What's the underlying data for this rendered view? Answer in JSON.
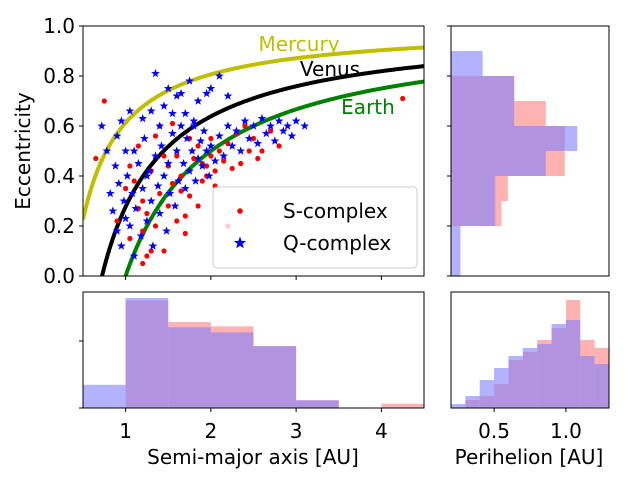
{
  "chart_data": [
    {
      "panel": "main-scatter",
      "type": "scatter",
      "xlabel": "",
      "ylabel": "Eccentricity",
      "xlim": [
        0.5,
        4.5
      ],
      "ylim": [
        0.0,
        1.0
      ],
      "yticks": [
        0.0,
        0.2,
        0.4,
        0.6,
        0.8,
        1.0
      ],
      "ytick_labels": [
        "0.0",
        "0.2",
        "0.4",
        "0.6",
        "0.8",
        "1.0"
      ],
      "xticks": [
        1,
        2,
        3,
        4
      ],
      "legend": {
        "placement": "lower-right",
        "entries": [
          "S-complex",
          "Q-complex"
        ]
      },
      "curves": [
        {
          "name": "Mercury",
          "label": "Mercury",
          "perihelion": 0.387,
          "color": "#bfbf00"
        },
        {
          "name": "Venus",
          "label": "Venus",
          "perihelion": 0.723,
          "color": "#000000"
        },
        {
          "name": "Earth",
          "label": "Earth",
          "perihelion": 1.0,
          "color": "#008000"
        }
      ],
      "series": [
        {
          "name": "S-complex",
          "color": "#ff0000",
          "marker": "dot",
          "points": [
            [
              0.65,
              0.47
            ],
            [
              0.75,
              0.7
            ],
            [
              0.9,
              0.22
            ],
            [
              1.0,
              0.35
            ],
            [
              1.05,
              0.15
            ],
            [
              1.1,
              0.38
            ],
            [
              1.2,
              0.3
            ],
            [
              1.25,
              0.25
            ],
            [
              1.3,
              0.42
            ],
            [
              1.35,
              0.2
            ],
            [
              1.4,
              0.33
            ],
            [
              1.45,
              0.1
            ],
            [
              1.5,
              0.28
            ],
            [
              1.55,
              0.37
            ],
            [
              1.6,
              0.48
            ],
            [
              1.65,
              0.4
            ],
            [
              1.7,
              0.24
            ],
            [
              1.75,
              0.32
            ],
            [
              1.8,
              0.47
            ],
            [
              1.85,
              0.52
            ],
            [
              1.9,
              0.38
            ],
            [
              1.95,
              0.44
            ],
            [
              2.0,
              0.55
            ],
            [
              2.05,
              0.42
            ],
            [
              2.1,
              0.5
            ],
            [
              2.15,
              0.46
            ],
            [
              2.2,
              0.53
            ],
            [
              2.3,
              0.57
            ],
            [
              2.4,
              0.6
            ],
            [
              2.5,
              0.55
            ],
            [
              2.6,
              0.5
            ],
            [
              1.2,
              0.05
            ],
            [
              1.3,
              0.1
            ],
            [
              1.15,
              0.52
            ],
            [
              1.4,
              0.6
            ],
            [
              1.55,
              0.61
            ],
            [
              1.7,
              0.17
            ],
            [
              2.2,
              0.2
            ],
            [
              1.6,
              0.22
            ],
            [
              1.9,
              0.45
            ],
            [
              2.0,
              0.48
            ],
            [
              2.35,
              0.45
            ],
            [
              1.75,
              0.55
            ],
            [
              2.7,
              0.58
            ],
            [
              2.8,
              0.52
            ],
            [
              4.25,
              0.71
            ],
            [
              1.25,
              0.08
            ],
            [
              1.05,
              0.44
            ],
            [
              1.45,
              0.48
            ],
            [
              1.65,
              0.34
            ],
            [
              1.85,
              0.28
            ],
            [
              2.05,
              0.36
            ],
            [
              2.45,
              0.5
            ],
            [
              1.35,
              0.56
            ],
            [
              1.15,
              0.27
            ],
            [
              2.55,
              0.47
            ],
            [
              2.25,
              0.43
            ],
            [
              1.95,
              0.4
            ],
            [
              1.5,
              0.44
            ],
            [
              1.2,
              0.18
            ]
          ]
        },
        {
          "name": "Q-complex",
          "color": "#0000ff",
          "marker": "star",
          "points": [
            [
              0.72,
              0.6
            ],
            [
              0.78,
              0.5
            ],
            [
              0.82,
              0.33
            ],
            [
              0.85,
              0.26
            ],
            [
              0.88,
              0.44
            ],
            [
              0.9,
              0.18
            ],
            [
              0.92,
              0.37
            ],
            [
              0.95,
              0.12
            ],
            [
              0.98,
              0.3
            ],
            [
              1.0,
              0.23
            ],
            [
              1.02,
              0.4
            ],
            [
              1.05,
              0.2
            ],
            [
              1.08,
              0.33
            ],
            [
              1.1,
              0.08
            ],
            [
              1.12,
              0.27
            ],
            [
              1.15,
              0.45
            ],
            [
              1.18,
              0.16
            ],
            [
              1.2,
              0.35
            ],
            [
              1.22,
              0.55
            ],
            [
              1.25,
              0.22
            ],
            [
              1.28,
              0.42
            ],
            [
              1.3,
              0.3
            ],
            [
              1.32,
              0.12
            ],
            [
              1.35,
              0.48
            ],
            [
              1.38,
              0.36
            ],
            [
              1.4,
              0.25
            ],
            [
              1.42,
              0.52
            ],
            [
              1.45,
              0.4
            ],
            [
              1.48,
              0.18
            ],
            [
              1.5,
              0.45
            ],
            [
              1.52,
              0.33
            ],
            [
              1.55,
              0.57
            ],
            [
              1.58,
              0.28
            ],
            [
              1.6,
              0.5
            ],
            [
              1.62,
              0.38
            ],
            [
              1.65,
              0.6
            ],
            [
              1.68,
              0.45
            ],
            [
              1.7,
              0.35
            ],
            [
              1.72,
              0.55
            ],
            [
              1.75,
              0.42
            ],
            [
              1.78,
              0.5
            ],
            [
              1.8,
              0.62
            ],
            [
              1.82,
              0.38
            ],
            [
              1.85,
              0.47
            ],
            [
              1.88,
              0.54
            ],
            [
              1.9,
              0.44
            ],
            [
              1.92,
              0.58
            ],
            [
              1.95,
              0.5
            ],
            [
              1.98,
              0.4
            ],
            [
              2.0,
              0.52
            ],
            [
              2.05,
              0.46
            ],
            [
              2.1,
              0.56
            ],
            [
              2.15,
              0.48
            ],
            [
              2.2,
              0.6
            ],
            [
              2.25,
              0.52
            ],
            [
              2.3,
              0.58
            ],
            [
              2.35,
              0.5
            ],
            [
              2.4,
              0.62
            ],
            [
              2.45,
              0.55
            ],
            [
              2.5,
              0.6
            ],
            [
              2.55,
              0.53
            ],
            [
              2.6,
              0.63
            ],
            [
              2.65,
              0.57
            ],
            [
              2.7,
              0.6
            ],
            [
              2.75,
              0.54
            ],
            [
              2.8,
              0.62
            ],
            [
              2.85,
              0.58
            ],
            [
              2.9,
              0.6
            ],
            [
              2.95,
              0.56
            ],
            [
              3.0,
              0.62
            ],
            [
              3.1,
              0.6
            ],
            [
              1.35,
              0.81
            ],
            [
              1.5,
              0.75
            ],
            [
              1.6,
              0.72
            ],
            [
              1.75,
              0.78
            ],
            [
              1.85,
              0.7
            ],
            [
              1.95,
              0.73
            ],
            [
              2.0,
              0.75
            ],
            [
              1.7,
              0.65
            ],
            [
              1.45,
              0.68
            ],
            [
              1.3,
              0.66
            ],
            [
              1.05,
              0.66
            ],
            [
              0.95,
              0.62
            ],
            [
              1.2,
              0.63
            ],
            [
              2.1,
              0.8
            ],
            [
              2.2,
              0.72
            ],
            [
              1.55,
              0.65
            ],
            [
              1.8,
              0.6
            ],
            [
              1.65,
              0.73
            ],
            [
              1.4,
              0.6
            ],
            [
              1.1,
              0.5
            ],
            [
              1.25,
              0.4
            ],
            [
              0.9,
              0.56
            ],
            [
              1.0,
              0.5
            ]
          ]
        }
      ]
    },
    {
      "panel": "perihelion-hist-horizontal",
      "type": "histogram",
      "orientation": "horizontal",
      "ylim": [
        0.0,
        1.0
      ],
      "bin_edges": [
        0.0,
        0.1,
        0.2,
        0.3,
        0.4,
        0.5,
        0.6,
        0.7,
        0.8,
        0.9,
        1.0
      ],
      "series": [
        {
          "name": "S-complex",
          "color": "#ff7f7f",
          "alpha": 0.6,
          "values": [
            0,
            0,
            0.8,
            0.9,
            1.8,
            1.8,
            1.5,
            1.0,
            0,
            0
          ]
        },
        {
          "name": "Q-complex",
          "color": "#7f7fff",
          "alpha": 0.6,
          "values": [
            0.15,
            0.15,
            0.7,
            0.7,
            1.5,
            2.0,
            1.0,
            1.0,
            0.5,
            0
          ]
        }
      ],
      "xlim": [
        0,
        2.5
      ]
    },
    {
      "panel": "semimajor-hist",
      "type": "histogram",
      "xlabel": "Semi-major axis [AU]",
      "xlim": [
        0.5,
        4.5
      ],
      "xticks": [
        1,
        2,
        3,
        4
      ],
      "xtick_labels": [
        "1",
        "2",
        "3",
        "4"
      ],
      "bin_edges": [
        0.5,
        1.0,
        1.5,
        2.0,
        2.5,
        3.0,
        3.5,
        4.0,
        4.5
      ],
      "series": [
        {
          "name": "S-complex",
          "color": "#ff7f7f",
          "alpha": 0.6,
          "values": [
            0.0,
            1.25,
            1.0,
            0.95,
            0.72,
            0.09,
            0.0,
            0.05
          ]
        },
        {
          "name": "Q-complex",
          "color": "#7f7fff",
          "alpha": 0.6,
          "values": [
            0.27,
            1.28,
            0.94,
            0.88,
            0.72,
            0.09,
            0.0,
            0.0
          ]
        }
      ],
      "ylim": [
        0,
        1.35
      ]
    },
    {
      "panel": "perihelion-hist",
      "type": "histogram",
      "xlabel": "Perihelion [AU]",
      "xlim": [
        0.2,
        1.3
      ],
      "xticks": [
        0.5,
        1.0
      ],
      "xtick_labels": [
        "0.5",
        "1.0"
      ],
      "bin_edges": [
        0.2,
        0.3,
        0.4,
        0.5,
        0.6,
        0.7,
        0.8,
        0.9,
        1.0,
        1.1,
        1.2,
        1.3
      ],
      "series": [
        {
          "name": "S-complex",
          "color": "#ff7f7f",
          "alpha": 0.6,
          "values": [
            0.0,
            0.1,
            0.15,
            0.3,
            0.6,
            0.7,
            0.85,
            1.0,
            1.35,
            0.85,
            0.75
          ]
        },
        {
          "name": "Q-complex",
          "color": "#7f7fff",
          "alpha": 0.6,
          "values": [
            0.05,
            0.15,
            0.35,
            0.5,
            0.65,
            0.75,
            0.8,
            1.05,
            1.1,
            0.65,
            0.55
          ]
        }
      ],
      "ylim": [
        0,
        1.45
      ]
    }
  ]
}
